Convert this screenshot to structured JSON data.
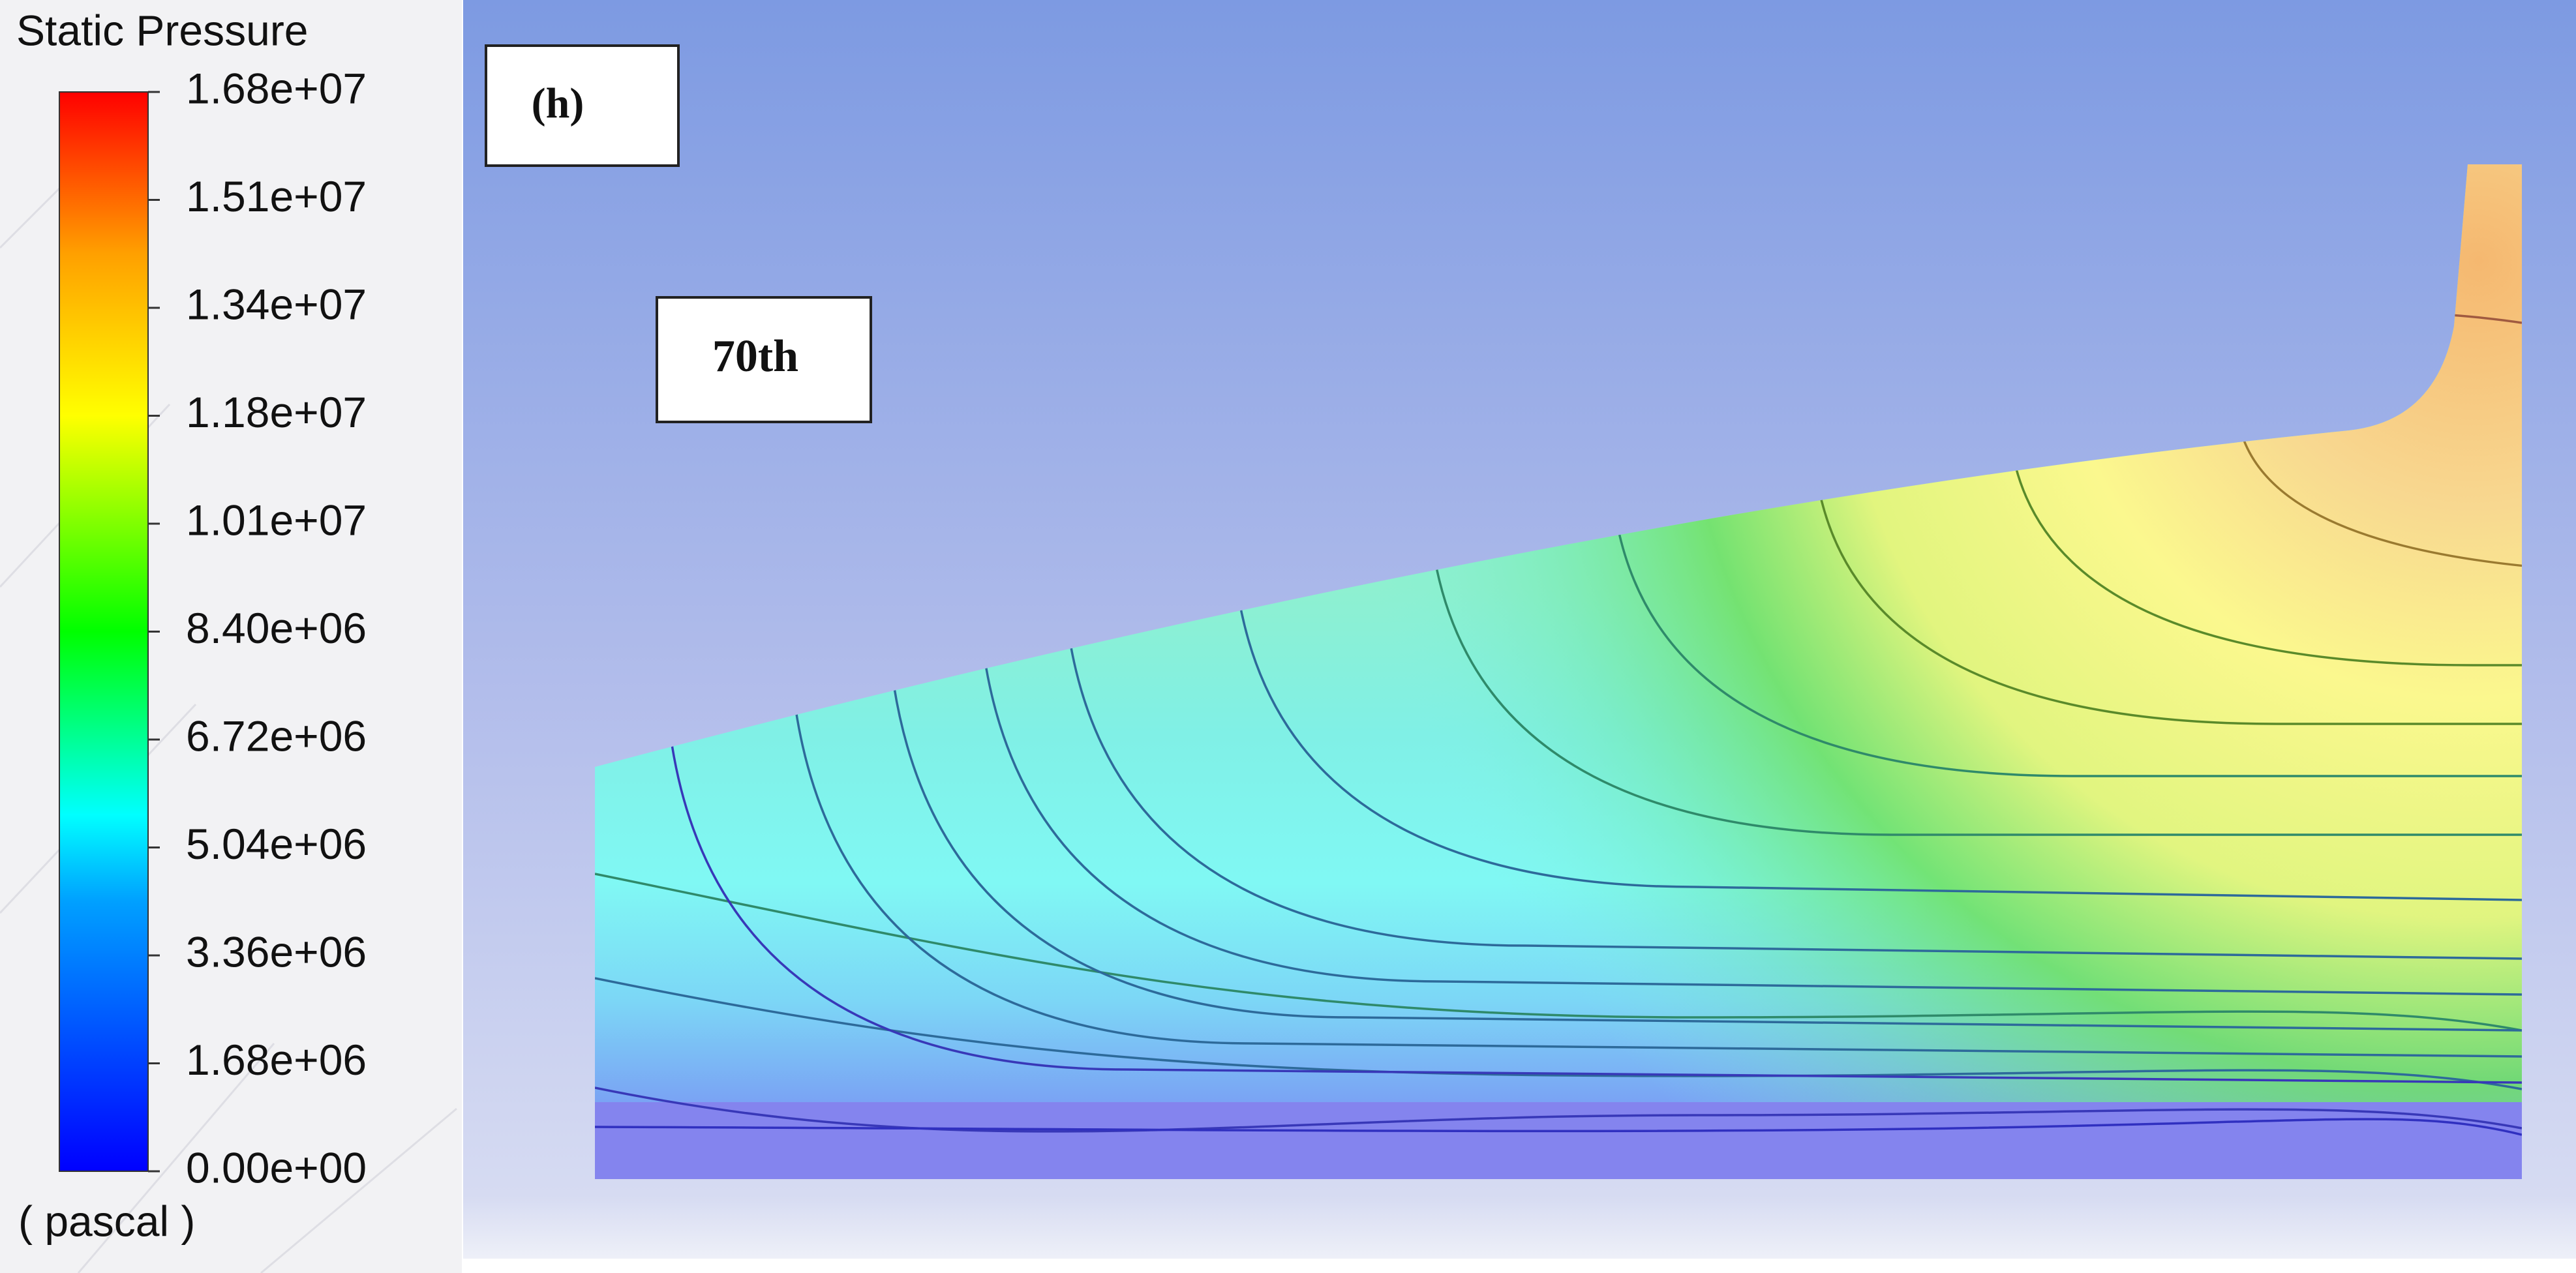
{
  "colorbar": {
    "title": "Static Pressure",
    "ticks": [
      "1.68e+07",
      "1.51e+07",
      "1.34e+07",
      "1.18e+07",
      "1.01e+07",
      "8.40e+06",
      "6.72e+06",
      "5.04e+06",
      "3.36e+06",
      "1.68e+06",
      "0.00e+00"
    ],
    "unit": "( pascal )"
  },
  "panel_label": "(h)",
  "annotation": "70th"
}
